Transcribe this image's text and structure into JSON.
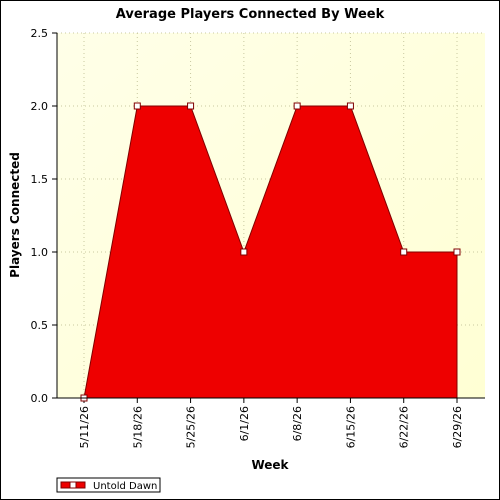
{
  "chart_data": {
    "type": "area",
    "title": "Average Players Connected By Week",
    "x_label": "Week",
    "y_label": "Players Connected",
    "categories": [
      "5/11/26",
      "5/18/26",
      "5/25/26",
      "6/1/26",
      "6/8/26",
      "6/15/26",
      "6/22/26",
      "6/29/26"
    ],
    "series": [
      {
        "name": "Untold Dawn",
        "color": "#ee0000",
        "values": [
          0,
          2,
          2,
          1,
          2,
          2,
          1,
          1
        ]
      }
    ],
    "ylim": [
      0,
      2.5
    ],
    "yticks": [
      {
        "value": 0,
        "label": "0.0"
      },
      0.5,
      {
        "value": 1,
        "label": "1.0"
      },
      1.5,
      {
        "value": 2,
        "label": "2.0"
      },
      2.5
    ],
    "grid": true,
    "legend": "bottom-left"
  }
}
